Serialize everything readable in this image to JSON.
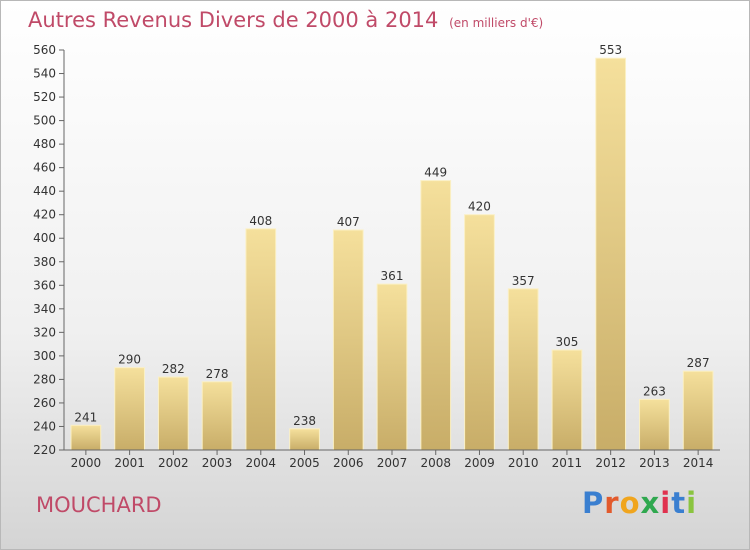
{
  "header": {
    "title": "Autres Revenus Divers de 2000 à 2014",
    "unit": "(en milliers d'€)"
  },
  "footer": {
    "commune": "MOUCHARD"
  },
  "brand": {
    "letters": [
      "P",
      "r",
      "o",
      "x",
      "i",
      "t",
      "i"
    ],
    "colors": [
      "#3a7fd0",
      "#e25a2c",
      "#f0a51e",
      "#2fa84f",
      "#e0324f",
      "#3a7fd0",
      "#8ac43f"
    ]
  },
  "colors": {
    "bar_top": "#f5e09c",
    "bar_bottom": "#c8ad68",
    "title": "#c04a68"
  },
  "chart_data": {
    "type": "bar",
    "categories": [
      "2000",
      "2001",
      "2002",
      "2003",
      "2004",
      "2005",
      "2006",
      "2007",
      "2008",
      "2009",
      "2010",
      "2011",
      "2012",
      "2013",
      "2014"
    ],
    "values": [
      241,
      290,
      282,
      278,
      408,
      238,
      407,
      361,
      449,
      420,
      357,
      305,
      553,
      263,
      287
    ],
    "title": "Autres Revenus Divers de 2000 à 2014",
    "xlabel": "",
    "ylabel": "",
    "ylim": [
      220,
      560
    ],
    "ytick_step": 20,
    "grid": false,
    "legend": "none"
  }
}
